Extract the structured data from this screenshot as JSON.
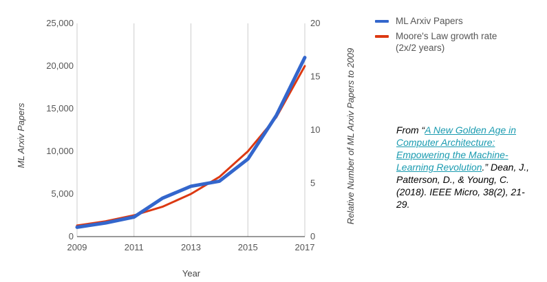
{
  "chart_data": {
    "type": "line",
    "x": [
      2009,
      2010,
      2011,
      2012,
      2013,
      2014,
      2015,
      2016,
      2017
    ],
    "x_ticks": [
      "2009",
      "2011",
      "2013",
      "2015",
      "2017"
    ],
    "xlabel": "Year",
    "ylabel_left": "ML Arxiv Papers",
    "ylabel_right": "Relative Number of ML Arxiv Papers  to 2009",
    "ylim_left": [
      0,
      25000
    ],
    "ylim_right": [
      0,
      20
    ],
    "yticks_left": [
      "0",
      "5,000",
      "10,000",
      "15,000",
      "20,000",
      "25,000"
    ],
    "yticks_right": [
      "0",
      "5",
      "10",
      "15",
      "20"
    ],
    "grid": "vertical gridlines at x ticks",
    "legend_position": "top-right",
    "series": [
      {
        "name": "ML Arxiv Papers",
        "axis": "left",
        "color": "#3366cc",
        "values": [
          1100,
          1600,
          2300,
          4500,
          5900,
          6500,
          9100,
          14200,
          21000
        ]
      },
      {
        "name": "Moore's Law growth rate (2x/2 years)",
        "axis": "left",
        "color": "#dc3912",
        "values": [
          1300,
          1800,
          2500,
          3500,
          5000,
          7000,
          10000,
          14000,
          20000
        ]
      }
    ]
  },
  "citation": {
    "prefix": "From “",
    "link_text": "A New Golden Age in Computer Architecture: Empowering the Machine-Learning Revolution",
    "suffix": ".” Dean, J., Patterson, D., & Young, C. (2018).  IEEE Micro, 38(2), 21-29."
  }
}
